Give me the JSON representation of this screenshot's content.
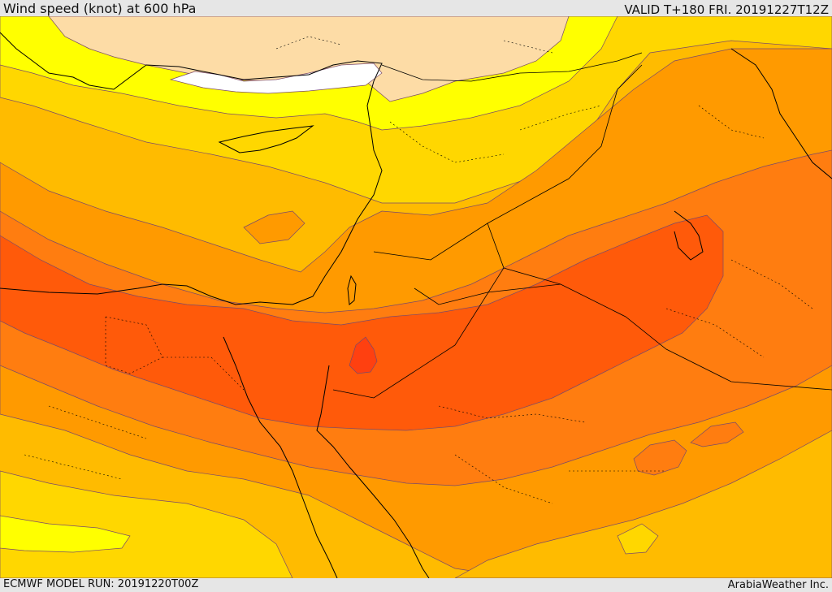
{
  "header": {
    "title": "Wind speed (knot) at 600 hPa",
    "valid_time": "VALID T+180 FRI. 20191227T12Z"
  },
  "footer": {
    "model_run": "ECMWF MODEL RUN: 20191220T00Z",
    "credit": "ArabiaWeather Inc."
  },
  "map": {
    "colors": {
      "band_lowest": "#ffffff",
      "band_peach": "#fddca6",
      "band_yellow": "#ffff00",
      "band_gold": "#ffd700",
      "band_amber": "#ffbb00",
      "band_orange": "#ff9a00",
      "band_darkorange": "#ff7d10",
      "band_red_orange": "#ff5a0a",
      "band_peak": "#ff4010",
      "contour_line": "#7a4a6a",
      "coastline": "#000000"
    }
  }
}
